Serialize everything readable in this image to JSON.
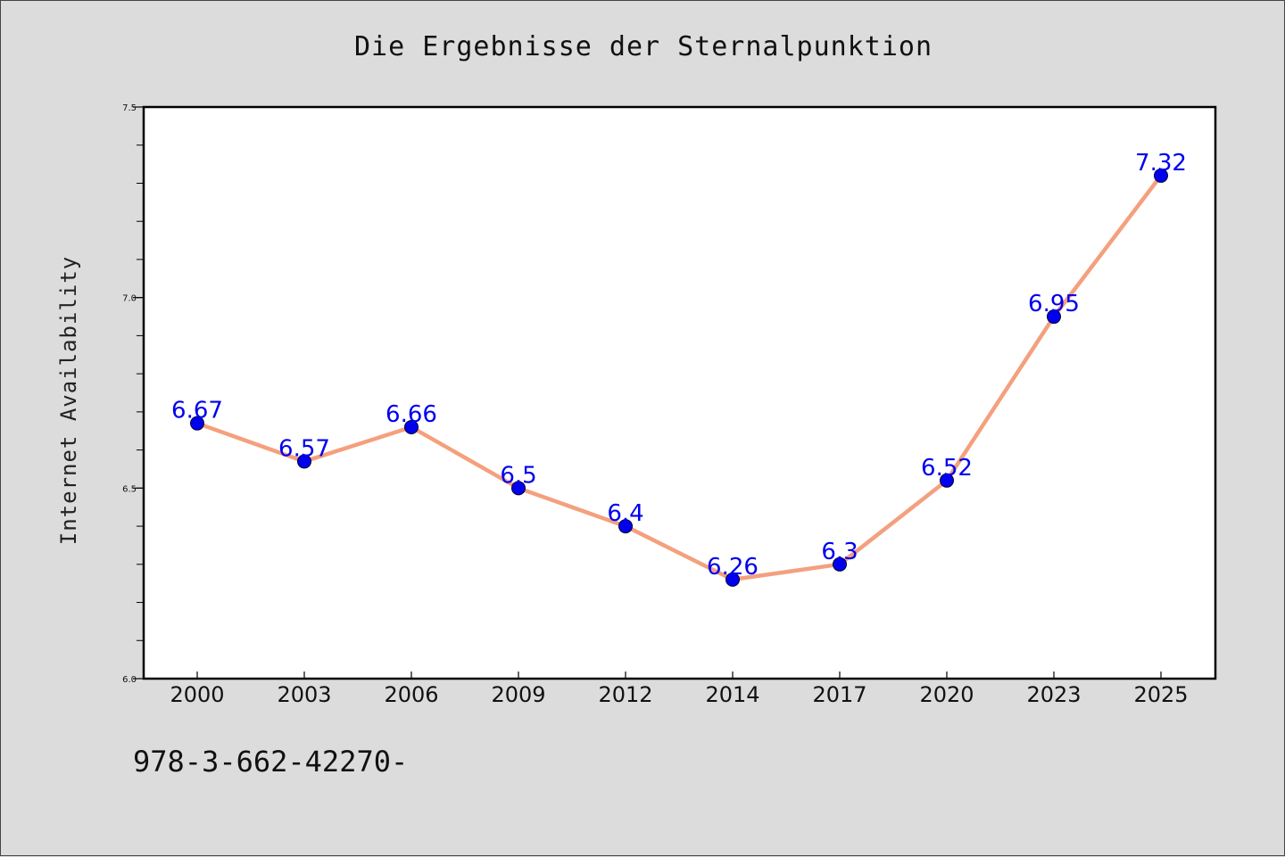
{
  "chart_data": {
    "type": "line",
    "title": "Die Ergebnisse der Sternalpunktion",
    "xlabel": "",
    "ylabel": "Internet Availability",
    "categories": [
      "2000",
      "2003",
      "2006",
      "2009",
      "2012",
      "2014",
      "2017",
      "2020",
      "2023",
      "2025"
    ],
    "series": [
      {
        "values": [
          6.67,
          6.57,
          6.66,
          6.5,
          6.4,
          6.26,
          6.3,
          6.52,
          6.95,
          7.32
        ],
        "labels": [
          "6.67",
          "6.57",
          "6.66",
          "6.5",
          "6.4",
          "6.26",
          "6.3",
          "6.52",
          "6.95",
          "7.32"
        ],
        "line_color": "#f4a07e",
        "marker_color": "#0000ee",
        "label_color": "#0000ee"
      }
    ],
    "ylim": [
      6.0,
      7.5
    ],
    "yticks": [
      "6.0",
      "6.5",
      "7.0",
      "7.5"
    ],
    "grid": false,
    "legend": "none"
  },
  "footer_text": "978-3-662-42270-"
}
